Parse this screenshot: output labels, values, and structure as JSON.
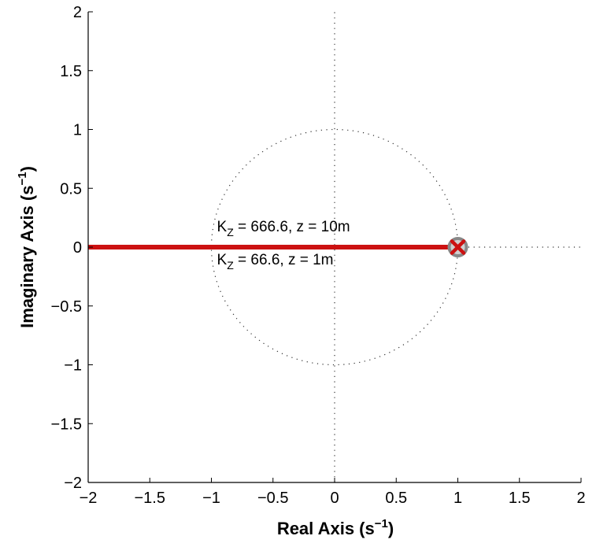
{
  "chart_data": {
    "type": "scatter",
    "title": "",
    "xlabel": "Real Axis (s⁻¹)",
    "ylabel": "Imaginary Axis (s⁻¹)",
    "xlabel_parts": {
      "main": "Real Axis (s",
      "sup": "−1",
      "close": ")"
    },
    "ylabel_parts": {
      "main": "Imaginary Axis (s",
      "sup": "−1",
      "close": ")"
    },
    "xlim": [
      -2,
      2
    ],
    "ylim": [
      -2,
      2
    ],
    "xticks": [
      -2,
      -1.5,
      -1,
      -0.5,
      0,
      0.5,
      1,
      1.5,
      2
    ],
    "yticks": [
      -2,
      -1.5,
      -1,
      -0.5,
      0,
      0.5,
      1,
      1.5,
      2
    ],
    "xtick_labels": [
      "−2",
      "−1.5",
      "−1",
      "−0.5",
      "0",
      "0.5",
      "1",
      "1.5",
      "2"
    ],
    "ytick_labels": [
      "−2",
      "−1.5",
      "−1",
      "−0.5",
      "0",
      "0.5",
      "1",
      "1.5",
      "2"
    ],
    "grid": false,
    "unit_circle": {
      "center": [
        0,
        0
      ],
      "radius": 1,
      "style": "dotted"
    },
    "reference_lines": [
      {
        "orientation": "vertical",
        "x": 0,
        "y_range": [
          -2,
          2
        ],
        "style": "dotted"
      },
      {
        "orientation": "horizontal",
        "y": 0,
        "x_range": [
          1,
          2
        ],
        "style": "dotted"
      }
    ],
    "series": [
      {
        "kind": "locus",
        "x": [
          -2,
          1
        ],
        "y": [
          0,
          0
        ],
        "color": "#cc1111"
      }
    ],
    "zero": {
      "x": 1,
      "y": 0,
      "color": "#888888"
    },
    "pole": {
      "x": 1,
      "y": 0,
      "color": "#cc1111"
    },
    "annotations": [
      {
        "id": "upper",
        "main": "K",
        "sub": "Z",
        "rest": " = 666.6, z = 10m",
        "x": -1.0,
        "y": 0.14
      },
      {
        "id": "lower",
        "main": "K",
        "sub": "Z",
        "rest": " = 66.6, z = 1m",
        "x": -1.0,
        "y": -0.14
      }
    ]
  }
}
